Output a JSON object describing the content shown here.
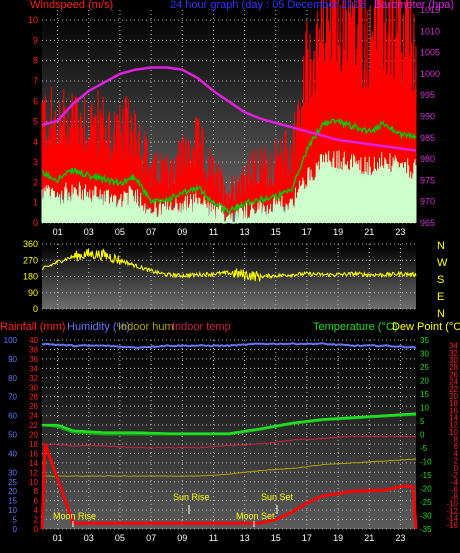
{
  "header": {
    "wind_label": "Windspeed (m/s)",
    "title": "24 hour graph (day : 05 December 2016",
    "baro_label": "Barometer (hpa)"
  },
  "bottom_header": {
    "rain_label": "Rainfall (mm)",
    "humidity_label": "Humidity (%)",
    "indoor_hum_label": "Indoor hum",
    "indoor_temp_label": "Indoor temp",
    "temperature_label": "Temperature (°C)",
    "dewpoint_label": "Dew Point (°C)"
  },
  "compass_letters": [
    "N",
    "W",
    "S",
    "E",
    "N"
  ],
  "annotations": {
    "moon_rise": "Moon Rise",
    "sun_rise": "Sun Rise",
    "moon_set": "Moon Set",
    "sun_set": "Sun Set"
  },
  "colors": {
    "wind": "#ff0000",
    "gust": "#ccffcc",
    "avg_wind": "#00cc00",
    "barometer": "#e020e0",
    "direction": "#ffff00",
    "humidity": "#6677ff",
    "indoor_hum": "#b0a000",
    "indoor_temp": "#cc2244",
    "temperature": "#22dd22",
    "rain": "#ff0000",
    "grid": "#bbbbbb",
    "axis_left": "#ff2020",
    "axis_right": "#cc33cc"
  },
  "chart_data": [
    {
      "type": "line",
      "x_ticks": [
        "01",
        "03",
        "05",
        "07",
        "09",
        "11",
        "13",
        "15",
        "17",
        "19",
        "21",
        "23"
      ],
      "xlim": [
        0,
        24
      ],
      "y_left": {
        "label": "Windspeed (m/s)",
        "ylim": [
          0,
          10.5
        ],
        "ticks": [
          0,
          1,
          2,
          3,
          4,
          5,
          6,
          7,
          8,
          9,
          10
        ]
      },
      "y_right": {
        "label": "Barometer (hpa)",
        "ylim": [
          965,
          1015
        ],
        "ticks": [
          965,
          970,
          975,
          980,
          985,
          990,
          995,
          1000,
          1005,
          1010,
          1015
        ]
      },
      "series": [
        {
          "name": "Windspeed",
          "x": [
            0,
            1,
            2,
            3,
            4,
            5,
            6,
            7,
            8,
            9,
            10,
            11,
            12,
            13,
            14,
            15,
            16,
            17,
            18,
            19,
            20,
            21,
            22,
            23,
            24
          ],
          "values": [
            3.4,
            3.0,
            3.6,
            3.2,
            3.0,
            2.7,
            3.2,
            1.4,
            1.6,
            2.0,
            2.4,
            1.4,
            0.8,
            1.4,
            1.6,
            1.8,
            2.2,
            5.0,
            6.8,
            7.0,
            6.6,
            6.3,
            6.8,
            6.1,
            5.9
          ]
        },
        {
          "name": "Barometer",
          "x": [
            0,
            1,
            2,
            3,
            4,
            5,
            6,
            7,
            8,
            9,
            10,
            11,
            12,
            13,
            14,
            15,
            16,
            17,
            18,
            19,
            20,
            21,
            22,
            23,
            24
          ],
          "values": [
            988,
            989,
            993,
            996,
            998,
            1000,
            1001,
            1001.5,
            1001.5,
            1001,
            999,
            996,
            993.5,
            991,
            989.5,
            988.5,
            987.5,
            986.5,
            985.5,
            984.5,
            984,
            983.5,
            983,
            982.5,
            982
          ]
        }
      ]
    },
    {
      "type": "line",
      "x_ticks": [
        "01",
        "03",
        "05",
        "07",
        "09",
        "11",
        "13",
        "15",
        "17",
        "19",
        "21",
        "23"
      ],
      "xlim": [
        0,
        24
      ],
      "ylim": [
        0,
        360
      ],
      "ticks": [
        0,
        90,
        180,
        270,
        360
      ],
      "series": [
        {
          "name": "Wind direction",
          "x": [
            0,
            1,
            2,
            3,
            4,
            5,
            6,
            7,
            8,
            9,
            10,
            11,
            12,
            13,
            14,
            15,
            16,
            17,
            18,
            19,
            20,
            21,
            22,
            23,
            24
          ],
          "values": [
            220,
            260,
            290,
            305,
            300,
            270,
            240,
            210,
            190,
            185,
            190,
            195,
            200,
            190,
            180,
            185,
            190,
            195,
            190,
            190,
            195,
            190,
            190,
            195,
            190
          ]
        }
      ]
    },
    {
      "type": "line",
      "x_ticks": [
        "01",
        "03",
        "05",
        "07",
        "09",
        "11",
        "13",
        "15",
        "17",
        "19",
        "21",
        "23"
      ],
      "xlim": [
        0,
        24
      ],
      "y_left_ticks": [
        0,
        5,
        10,
        15,
        20,
        25,
        30,
        35,
        40,
        45,
        50,
        55,
        60,
        65,
        70,
        75,
        80,
        85,
        90,
        95,
        100
      ],
      "y_rain_ticks": [
        0,
        2,
        4,
        6,
        8,
        10,
        12,
        14,
        16,
        18,
        20,
        22,
        24,
        26,
        28,
        30,
        32,
        34,
        36,
        38,
        40
      ],
      "y_temp_ticks": [
        -35,
        -30,
        -25,
        -20,
        -15,
        -10,
        -5,
        0,
        5,
        10,
        15,
        20,
        25,
        30,
        35
      ],
      "y_dew_ticks": [
        -16,
        -14,
        -12,
        -10,
        -8,
        -6,
        -4,
        -2,
        0,
        2,
        4,
        6,
        8,
        10,
        12,
        14,
        16,
        18,
        20,
        22,
        24,
        26,
        28,
        30,
        32,
        34
      ],
      "series": [
        {
          "name": "Humidity",
          "x": [
            0,
            2,
            4,
            6,
            8,
            10,
            12,
            14,
            16,
            18,
            20,
            22,
            24
          ],
          "values": [
            98,
            97,
            97,
            96,
            97,
            97,
            97,
            98,
            98,
            98,
            97,
            97,
            96
          ]
        },
        {
          "name": "Indoor hum",
          "x": [
            0,
            2,
            4,
            6,
            8,
            10,
            12,
            14,
            16,
            18,
            20,
            22,
            24
          ],
          "values": [
            28,
            28,
            28,
            28,
            28,
            28,
            29,
            31,
            32,
            34,
            35,
            36,
            37
          ]
        },
        {
          "name": "Indoor temp",
          "x": [
            0,
            2,
            4,
            6,
            8,
            10,
            12,
            14,
            16,
            18,
            20,
            22,
            24
          ],
          "values": [
            45,
            44,
            44,
            43,
            43,
            43,
            44,
            45,
            47,
            48,
            49,
            49,
            49
          ]
        },
        {
          "name": "Temperature",
          "x": [
            0,
            1,
            2,
            4,
            6,
            8,
            10,
            12,
            14,
            16,
            18,
            20,
            22,
            24
          ],
          "values": [
            55,
            55,
            52,
            51,
            51,
            50.5,
            50.5,
            50.5,
            53,
            56,
            58,
            59,
            60,
            61
          ]
        },
        {
          "name": "Dew Point",
          "x": [
            0,
            1,
            2,
            4,
            6,
            8,
            10,
            12,
            14,
            16,
            18,
            20,
            22,
            24
          ],
          "values": [
            55,
            54,
            51,
            50,
            50,
            50,
            50,
            50,
            52.5,
            55.5,
            57.5,
            58.5,
            59.5,
            60.5
          ]
        },
        {
          "name": "Rainfall",
          "x": [
            0,
            0.2,
            2,
            4,
            6,
            8,
            10,
            12,
            14,
            15,
            16,
            17,
            18,
            19,
            20,
            21,
            22,
            23,
            23.8,
            24
          ],
          "values": [
            0,
            18,
            1.2,
            1.2,
            1.2,
            1.2,
            1.2,
            1.2,
            1.2,
            2,
            3.5,
            5.5,
            7,
            7.5,
            8,
            8.1,
            8.2,
            9,
            9,
            0
          ]
        }
      ]
    }
  ]
}
